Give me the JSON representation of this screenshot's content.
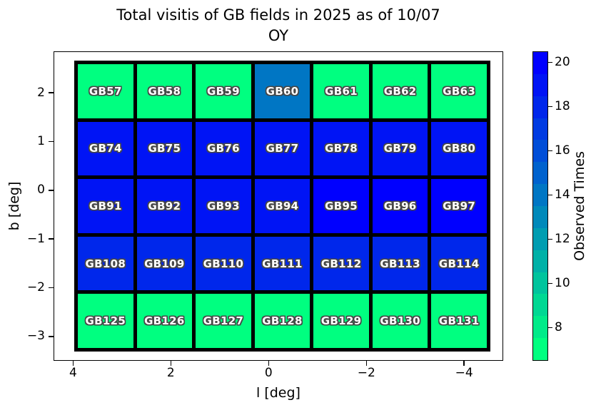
{
  "chart_data": {
    "type": "heatmap",
    "title_line1": "Total visitis of GB fields in 2025 as of 10/07",
    "title_line2": "OY",
    "xlabel": "l [deg]",
    "ylabel": "b [deg]",
    "xlim": [
      4.4,
      -4.8
    ],
    "ylim": [
      2.85,
      -3.5
    ],
    "xticks": [
      4,
      2,
      0,
      -2,
      -4
    ],
    "yticks": [
      2,
      1,
      0,
      -1,
      -2,
      -3
    ],
    "grid": false,
    "colorbar": {
      "label": "Observed Times",
      "vmin": 6.5,
      "vmax": 20.5,
      "ticks": [
        8,
        10,
        12,
        14,
        16,
        18,
        20
      ],
      "step_colors": [
        "#00ff80",
        "#00eb89",
        "#00d893",
        "#00c49d",
        "#00b1a7",
        "#009db1",
        "#0089ba",
        "#0076c4",
        "#0062ce",
        "#004ed8",
        "#003be2",
        "#0027eb",
        "#0014f5",
        "#0000ff"
      ]
    },
    "rows": [
      {
        "cells": [
          {
            "label": "GB57",
            "value": 7
          },
          {
            "label": "GB58",
            "value": 7
          },
          {
            "label": "GB59",
            "value": 7
          },
          {
            "label": "GB60",
            "value": 14
          },
          {
            "label": "GB61",
            "value": 7
          },
          {
            "label": "GB62",
            "value": 7
          },
          {
            "label": "GB63",
            "value": 7
          }
        ]
      },
      {
        "cells": [
          {
            "label": "GB74",
            "value": 19
          },
          {
            "label": "GB75",
            "value": 19
          },
          {
            "label": "GB76",
            "value": 19
          },
          {
            "label": "GB77",
            "value": 19
          },
          {
            "label": "GB78",
            "value": 19
          },
          {
            "label": "GB79",
            "value": 19
          },
          {
            "label": "GB80",
            "value": 19
          }
        ]
      },
      {
        "cells": [
          {
            "label": "GB91",
            "value": 19
          },
          {
            "label": "GB92",
            "value": 19
          },
          {
            "label": "GB93",
            "value": 19
          },
          {
            "label": "GB94",
            "value": 19
          },
          {
            "label": "GB95",
            "value": 20
          },
          {
            "label": "GB96",
            "value": 20
          },
          {
            "label": "GB97",
            "value": 20
          }
        ]
      },
      {
        "cells": [
          {
            "label": "GB108",
            "value": 18
          },
          {
            "label": "GB109",
            "value": 18
          },
          {
            "label": "GB110",
            "value": 18
          },
          {
            "label": "GB111",
            "value": 18
          },
          {
            "label": "GB112",
            "value": 18
          },
          {
            "label": "GB113",
            "value": 18
          },
          {
            "label": "GB114",
            "value": 18
          }
        ]
      },
      {
        "cells": [
          {
            "label": "GB125",
            "value": 7
          },
          {
            "label": "GB126",
            "value": 7
          },
          {
            "label": "GB127",
            "value": 7
          },
          {
            "label": "GB128",
            "value": 7
          },
          {
            "label": "GB129",
            "value": 7
          },
          {
            "label": "GB130",
            "value": 7
          },
          {
            "label": "GB131",
            "value": 7
          }
        ]
      }
    ]
  }
}
